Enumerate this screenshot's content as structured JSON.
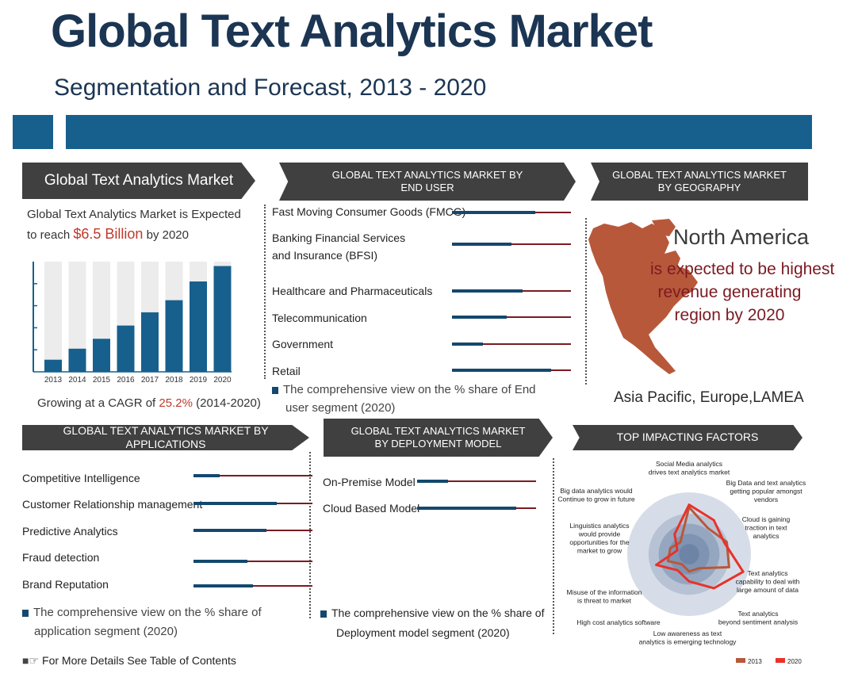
{
  "header": {
    "title": "Global Text Analytics Market",
    "subtitle": "Segmentation and Forecast, 2013 - 2020"
  },
  "colors": {
    "brand_blue": "#17608e",
    "dark_blue": "#14486e",
    "maroon": "#7b1a22",
    "accent_red": "#c0392b",
    "banner_gray": "#404040",
    "map_brown": "#b8583a"
  },
  "market": {
    "banner": "Global Text Analytics Market",
    "line1_a": "Global Text Analytics Market is Expected",
    "line2_a": "to reach ",
    "line2_value": "$6.5 Billion",
    "line2_b": " by 2020",
    "cagr_a": "Growing at a CAGR of ",
    "cagr_value": "25.2%",
    "cagr_b": " (2014-2020)"
  },
  "end_user": {
    "banner_line1": "GLOBAL TEXT ANALYTICS MARKET BY",
    "banner_line2": "END USER",
    "items": [
      {
        "label": "Fast Moving Consumer Goods (FMCG)",
        "share": 0.7
      },
      {
        "label_line1": "Banking Financial Services",
        "label_line2": "and Insurance (BFSI)",
        "share": 0.5
      },
      {
        "label": "Healthcare and Pharmaceuticals",
        "share": 0.59
      },
      {
        "label": "Telecommunication",
        "share": 0.46
      },
      {
        "label": "Government",
        "share": 0.26
      },
      {
        "label": "Retail",
        "share": 0.83
      }
    ],
    "note_line1": "The comprehensive view on the % share of End",
    "note_line2": "user segment (2020)"
  },
  "geography": {
    "banner_line1": "GLOBAL TEXT ANALYTICS MARKET",
    "banner_line2": "BY GEOGRAPHY",
    "region": "North America",
    "desc_line1": "is expected to be highest",
    "desc_line2": "revenue generating",
    "desc_line3": "region by 2020",
    "others": "Asia Pacific, Europe,LAMEA"
  },
  "applications": {
    "banner": "GLOBAL TEXT ANALYTICS MARKET BY APPLICATIONS",
    "items": [
      {
        "label": "Competitive Intelligence",
        "share": 0.22
      },
      {
        "label": "Customer Relationship management",
        "share": 0.7
      },
      {
        "label": "Predictive Analytics",
        "share": 0.61
      },
      {
        "label": "Fraud detection",
        "share": 0.45
      },
      {
        "label": "Brand Reputation",
        "share": 0.5
      }
    ],
    "note_line1": "The comprehensive view on the % share of",
    "note_line2": "application segment (2020)"
  },
  "deployment": {
    "banner_line1": "GLOBAL TEXT ANALYTICS MARKET",
    "banner_line2": "BY DEPLOYMENT MODEL",
    "items": [
      {
        "label": "On-Premise Model",
        "share": 0.26
      },
      {
        "label": "Cloud Based Model",
        "share": 0.83
      }
    ],
    "note_line1": "The comprehensive view on the % share of",
    "note_line2": "Deployment model segment (2020)"
  },
  "factors": {
    "banner": "TOP IMPACTING FACTORS"
  },
  "footer": {
    "text": "For More Details See Table of Contents"
  },
  "chart_data": [
    {
      "type": "bar",
      "categories": [
        "2013",
        "2014",
        "2015",
        "2016",
        "2017",
        "2018",
        "2019",
        "2020"
      ],
      "values": [
        0.11,
        0.21,
        0.3,
        0.42,
        0.54,
        0.65,
        0.82,
        0.96
      ],
      "title": "",
      "xlabel": "",
      "ylabel": "",
      "ylim": [
        0,
        1
      ],
      "grid": false,
      "background_bars": true
    },
    {
      "type": "radar",
      "axes": [
        {
          "line1": "Social Media analytics",
          "line2": "drives text analytics market"
        },
        {
          "line1": "Big Data and text analytics",
          "line2": "getting popular amongst",
          "line3": "vendors"
        },
        {
          "line1": "Cloud is gaining",
          "line2": "traction in text",
          "line3": "analytics"
        },
        {
          "line1": "Text analytics",
          "line2": "capability to deal with",
          "line3": "large amount of data"
        },
        {
          "line1": "Text analytics",
          "line2": "beyond sentiment analysis"
        },
        {
          "line1": "Low awareness as text",
          "line2": "analytics is emerging technology"
        },
        {
          "line1": "High cost analytics software"
        },
        {
          "line1": "Misuse of the information",
          "line2": "is threat to market"
        },
        {
          "line1": "Linguistics analytics",
          "line2": "would provide",
          "line3": "opportunities for the",
          "line4": "market to grow"
        },
        {
          "line1": "Big data analytics would",
          "line2": "Continue to grow in future"
        }
      ],
      "rmax": 5,
      "series": [
        {
          "name": "2013",
          "color": "#b8583a",
          "values": [
            3.8,
            2.6,
            3.2,
            3.4,
            1.4,
            1.4,
            1.0,
            1.8,
            1.6,
            1.2
          ]
        },
        {
          "name": "2020",
          "color": "#e8322a",
          "values": [
            4.0,
            3.4,
            3.0,
            4.6,
            3.4,
            2.2,
            1.6,
            2.8,
            1.0,
            2.0
          ]
        }
      ]
    }
  ]
}
